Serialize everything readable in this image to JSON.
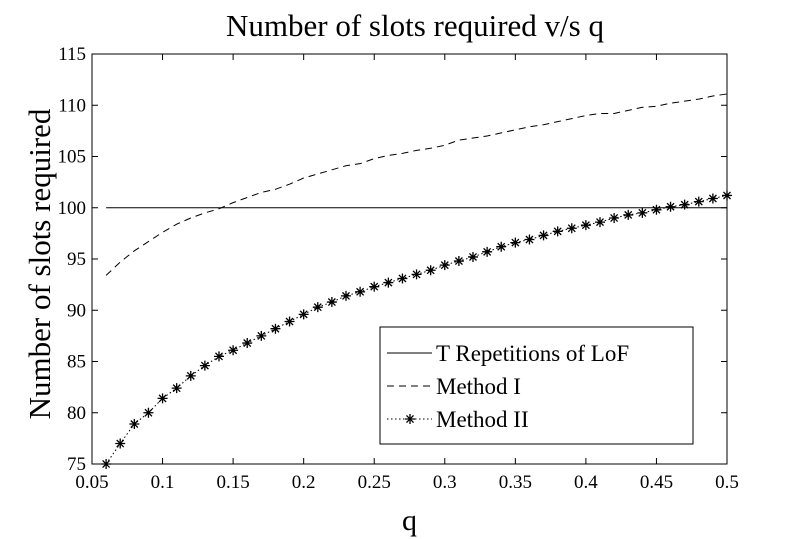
{
  "chart_data": {
    "type": "line",
    "title": "Number of slots required v/s q",
    "xlabel": "q",
    "ylabel": "Number of slots required",
    "xlim": [
      0.05,
      0.5
    ],
    "ylim": [
      75,
      115
    ],
    "xticks": [
      0.05,
      0.1,
      0.15,
      0.2,
      0.25,
      0.3,
      0.35,
      0.4,
      0.45,
      0.5
    ],
    "xtick_labels": [
      "0.05",
      "0.1",
      "0.15",
      "0.2",
      "0.25",
      "0.3",
      "0.35",
      "0.4",
      "0.45",
      "0.5"
    ],
    "yticks": [
      75,
      80,
      85,
      90,
      95,
      100,
      105,
      110,
      115
    ],
    "ytick_labels": [
      "75",
      "80",
      "85",
      "90",
      "95",
      "100",
      "105",
      "110",
      "115"
    ],
    "grid": false,
    "legend_position": "bottom-right",
    "x": [
      0.06,
      0.07,
      0.08,
      0.09,
      0.1,
      0.11,
      0.12,
      0.13,
      0.14,
      0.15,
      0.16,
      0.17,
      0.18,
      0.19,
      0.2,
      0.21,
      0.22,
      0.23,
      0.24,
      0.25,
      0.26,
      0.27,
      0.28,
      0.29,
      0.3,
      0.31,
      0.32,
      0.33,
      0.34,
      0.35,
      0.36,
      0.37,
      0.38,
      0.39,
      0.4,
      0.41,
      0.42,
      0.43,
      0.44,
      0.45,
      0.46,
      0.47,
      0.48,
      0.49,
      0.5
    ],
    "series": [
      {
        "name": "T Repetitions of LoF",
        "style": "solid",
        "color": "#000000",
        "values": [
          100,
          100,
          100,
          100,
          100,
          100,
          100,
          100,
          100,
          100,
          100,
          100,
          100,
          100,
          100,
          100,
          100,
          100,
          100,
          100,
          100,
          100,
          100,
          100,
          100,
          100,
          100,
          100,
          100,
          100,
          100,
          100,
          100,
          100,
          100,
          100,
          100,
          100,
          100,
          100,
          100,
          100,
          100,
          100,
          100
        ]
      },
      {
        "name": "Method I",
        "style": "dashed",
        "color": "#000000",
        "values": [
          93.4,
          94.7,
          95.8,
          96.7,
          97.6,
          98.4,
          99.0,
          99.5,
          99.9,
          100.5,
          101.0,
          101.5,
          101.8,
          102.3,
          102.9,
          103.3,
          103.7,
          104.1,
          104.3,
          104.8,
          105.1,
          105.3,
          105.6,
          105.8,
          106.1,
          106.6,
          106.8,
          107.0,
          107.3,
          107.6,
          107.9,
          108.1,
          108.4,
          108.7,
          109.0,
          109.2,
          109.2,
          109.5,
          109.8,
          109.9,
          110.2,
          110.4,
          110.6,
          110.9,
          111.1
        ]
      },
      {
        "name": "Method II",
        "style": "dotted-star",
        "color": "#000000",
        "values": [
          75.0,
          77.0,
          78.9,
          80.0,
          81.4,
          82.4,
          83.6,
          84.6,
          85.5,
          86.1,
          86.8,
          87.5,
          88.2,
          88.9,
          89.6,
          90.3,
          90.8,
          91.4,
          91.8,
          92.3,
          92.7,
          93.1,
          93.5,
          93.9,
          94.4,
          94.8,
          95.2,
          95.7,
          96.2,
          96.6,
          96.9,
          97.3,
          97.7,
          98.0,
          98.3,
          98.6,
          99.0,
          99.3,
          99.5,
          99.8,
          100.1,
          100.3,
          100.6,
          100.9,
          101.2
        ]
      }
    ]
  }
}
